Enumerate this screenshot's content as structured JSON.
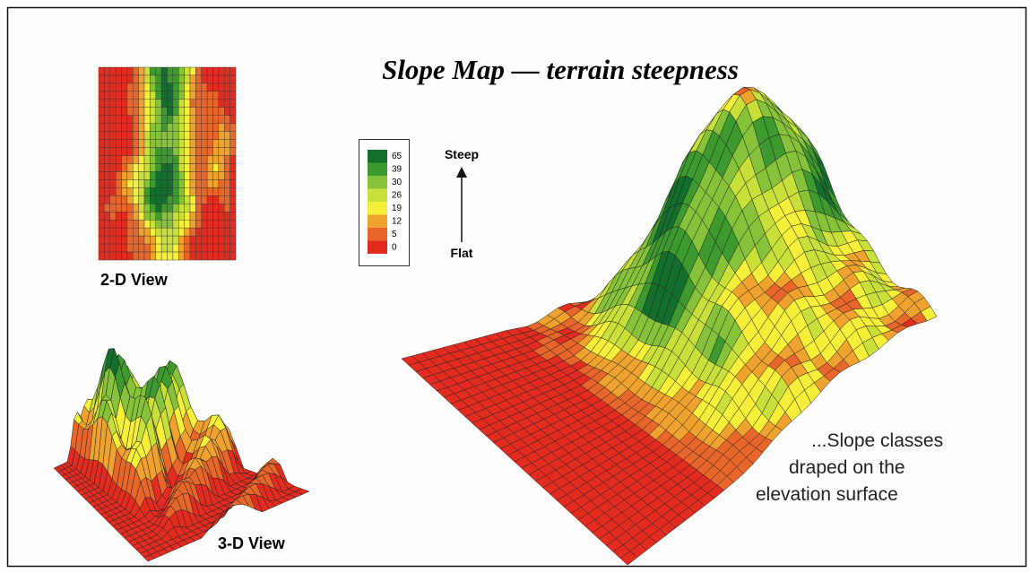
{
  "title": "Slope Map — terrain steepness",
  "views": {
    "two_d": "2-D View",
    "three_d": "3-D View"
  },
  "legend": {
    "classes": [
      {
        "value": 65,
        "color": "#13702c"
      },
      {
        "value": 39,
        "color": "#3d9a2f"
      },
      {
        "value": 30,
        "color": "#86c23a"
      },
      {
        "value": 26,
        "color": "#c9e03b"
      },
      {
        "value": 19,
        "color": "#f6ef3a"
      },
      {
        "value": 12,
        "color": "#f0a22f"
      },
      {
        "value": 5,
        "color": "#e8662a"
      },
      {
        "value": 0,
        "color": "#e42b20"
      }
    ],
    "top": "Steep",
    "bottom": "Flat"
  },
  "annotation": [
    "...Slope classes",
    "draped on the",
    "elevation surface"
  ]
}
